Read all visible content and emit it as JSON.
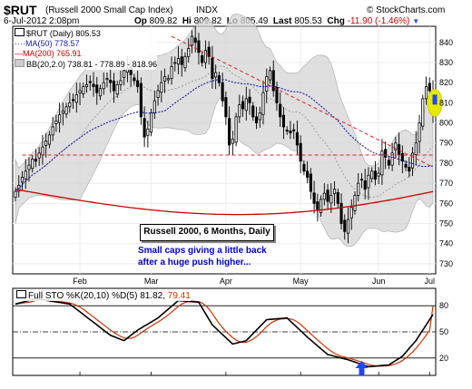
{
  "header": {
    "symbol": "$RUT",
    "name": "(Russell 2000 Small Cap Index)",
    "exchange": "INDX",
    "brand": "© StockCharts.com",
    "date": "6-Jul-2012 2:08pm",
    "open_label": "Op",
    "open": "809.82",
    "high_label": "Hi",
    "high": "809.82",
    "low_label": "Lo",
    "low": "805.49",
    "last_label": "Last",
    "last": "805.53",
    "chg_label": "Chg",
    "chg": "-11.90 (-1.46%)"
  },
  "legend": {
    "price": "$RUT (Daily) 805.53",
    "ma50": "MA(50) 778.57",
    "ma200": "MA(200) 765.91",
    "bb": "BB(20,2.0) 738.81 - 778.89 - 818.96"
  },
  "annotation": {
    "box_title": "Russell 2000, 6 Months, Daily",
    "line1": "Small caps giving a little back",
    "line2": "after a huge push higher..."
  },
  "sto_legend": {
    "label": "Full STO %K(20,10) %D(5)",
    "k_value": "81.82",
    "d_value": "79.41"
  },
  "colors": {
    "ma50": "#1a1aa6",
    "ma200": "#cc0000",
    "band_fill": "#d4d4d4",
    "candle": "#000000",
    "trendline": "#dd2222",
    "annotation_text": "#0000cc",
    "sto_k": "#000000",
    "sto_d": "#cc3300",
    "arrow": "#1e46ff",
    "highlight": "#e8e800",
    "chg_down": "#cc0000"
  },
  "chart_data": [
    {
      "type": "candlestick",
      "title": "$RUT (Russell 2000 Small Cap Index) INDX",
      "x_axis_labels": [
        "Feb",
        "Mar",
        "Apr",
        "May",
        "Jun",
        "Jul"
      ],
      "y_ticks": [
        730,
        740,
        750,
        760,
        770,
        780,
        790,
        800,
        810,
        820,
        830,
        840
      ],
      "ylim": [
        725,
        848
      ],
      "grid": true,
      "y_axis_side": "right",
      "series": [
        {
          "name": "$RUT (Daily)",
          "last": 805.53,
          "closes": [
            766,
            769,
            773,
            776,
            779,
            782,
            781,
            785,
            788,
            791,
            794,
            798,
            801,
            804,
            806,
            808,
            810,
            811,
            814,
            816,
            818,
            819,
            820,
            818,
            815,
            817,
            820,
            822,
            820,
            816,
            819,
            821,
            826,
            827,
            824,
            821,
            818,
            803,
            793,
            797,
            805,
            811,
            816,
            820,
            823,
            822,
            828,
            830,
            832,
            829,
            833,
            837,
            843,
            840,
            835,
            830,
            836,
            833,
            822,
            825,
            820,
            811,
            803,
            789,
            792,
            803,
            809,
            807,
            812,
            810,
            803,
            800,
            805,
            815,
            823,
            826,
            816,
            810,
            803,
            798,
            796,
            795,
            796,
            789,
            781,
            776,
            773,
            766,
            760,
            757,
            762,
            765,
            761,
            764,
            767,
            760,
            750,
            746,
            752,
            758,
            764,
            770,
            772,
            767,
            774,
            776,
            772,
            775,
            786,
            783,
            779,
            785,
            790,
            784,
            781,
            778,
            776,
            785,
            790,
            800,
            812,
            818,
            816,
            805
          ]
        },
        {
          "name": "MA(50)",
          "last": 778.57
        },
        {
          "name": "MA(200)",
          "last": 765.91
        },
        {
          "name": "BB(20,2.0)",
          "lower": 738.81,
          "middle": 778.89,
          "upper": 818.96
        }
      ],
      "horizontal_lines": [
        {
          "value": 784,
          "style": "dashed"
        }
      ],
      "trendlines": [
        {
          "from": [
            843,
            "Mar"
          ],
          "to": [
            778,
            "Jul"
          ]
        }
      ],
      "annotations": [
        "Russell 2000, 6 Months, Daily",
        "Small caps giving a little back",
        "after a huge push higher..."
      ]
    },
    {
      "type": "line",
      "title": "Full STO %K(20,10) %D(5) 81.82, 79.41",
      "y_ticks": [
        20,
        50,
        80
      ],
      "ylim": [
        0,
        100
      ],
      "series": [
        {
          "name": "%K",
          "last": 81.82
        },
        {
          "name": "%D",
          "last": 79.41
        }
      ],
      "reference_lines": [
        20,
        50,
        80
      ]
    }
  ]
}
